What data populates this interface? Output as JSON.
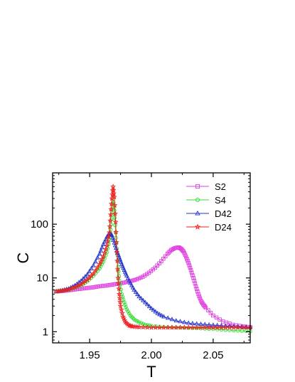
{
  "chart_data": {
    "type": "line",
    "xlabel": "T",
    "ylabel": "C",
    "xlim": [
      1.92,
      2.08
    ],
    "ylim": [
      0.62,
      900
    ],
    "yscale": "log",
    "xticks": [
      1.95,
      2.0,
      2.05
    ],
    "xtick_labels": [
      "1.95",
      "2.00",
      "2.05"
    ],
    "yticks": [
      1,
      10,
      100
    ],
    "ytick_labels": [
      "1",
      "10",
      "100"
    ],
    "grid": false,
    "legend_position": "top-right",
    "series": [
      {
        "name": "S2",
        "color": "#e040e0",
        "marker": "square",
        "x": [
          1.923,
          1.928,
          1.933,
          1.938,
          1.943,
          1.948,
          1.953,
          1.958,
          1.963,
          1.968,
          1.973,
          1.978,
          1.983,
          1.988,
          1.993,
          1.998,
          2.003,
          2.008,
          2.013,
          2.016,
          2.019,
          2.022,
          2.024,
          2.026,
          2.028,
          2.03,
          2.032,
          2.034,
          2.036,
          2.038,
          2.04,
          2.042,
          2.044,
          2.05,
          2.058,
          2.066,
          2.074,
          2.08
        ],
        "y": [
          5.6,
          5.7,
          5.9,
          6.1,
          6.3,
          6.5,
          6.7,
          7.0,
          7.2,
          7.5,
          7.8,
          8.2,
          8.7,
          9.4,
          10.5,
          12.5,
          15.5,
          20.5,
          28,
          33,
          36,
          37,
          35,
          31,
          25,
          19,
          14,
          10,
          7.0,
          5.0,
          3.8,
          3.2,
          2.8,
          2.0,
          1.55,
          1.35,
          1.25,
          1.22
        ]
      },
      {
        "name": "S4",
        "color": "#33dd33",
        "marker": "circle",
        "x": [
          1.923,
          1.928,
          1.933,
          1.938,
          1.943,
          1.948,
          1.953,
          1.958,
          1.961,
          1.964,
          1.966,
          1.967,
          1.968,
          1.969,
          1.97,
          1.971,
          1.972,
          1.973,
          1.974,
          1.976,
          1.978,
          1.98,
          1.983,
          1.986,
          1.99,
          1.995,
          2.0,
          2.01,
          2.02,
          2.03,
          2.04,
          2.05,
          2.06,
          2.07,
          2.08
        ],
        "y": [
          5.6,
          5.8,
          6.1,
          6.6,
          7.3,
          8.6,
          11,
          15,
          20,
          30,
          50,
          80,
          150,
          300,
          180,
          70,
          35,
          16,
          9,
          5,
          3.5,
          2.6,
          2.0,
          1.7,
          1.5,
          1.35,
          1.28,
          1.22,
          1.2,
          1.18,
          1.15,
          1.12,
          1.08,
          1.05,
          1.02
        ]
      },
      {
        "name": "D42",
        "color": "#2233cc",
        "marker": "triangle",
        "x": [
          1.923,
          1.928,
          1.933,
          1.938,
          1.943,
          1.948,
          1.953,
          1.958,
          1.961,
          1.964,
          1.966,
          1.968,
          1.97,
          1.972,
          1.974,
          1.976,
          1.978,
          1.98,
          1.983,
          1.986,
          1.99,
          1.995,
          2.0,
          2.005,
          2.01,
          2.02,
          2.03,
          2.04,
          2.05,
          2.06,
          2.07,
          2.08
        ],
        "y": [
          5.6,
          5.9,
          6.3,
          7.2,
          8.8,
          11.5,
          17,
          28,
          42,
          58,
          67,
          62,
          45,
          32,
          24,
          18,
          14,
          11,
          8,
          6,
          4.5,
          3.5,
          2.7,
          2.2,
          1.9,
          1.6,
          1.45,
          1.38,
          1.33,
          1.28,
          1.25,
          1.22
        ]
      },
      {
        "name": "D24",
        "color": "#ee2222",
        "marker": "star",
        "x": [
          1.923,
          1.928,
          1.933,
          1.938,
          1.943,
          1.948,
          1.953,
          1.958,
          1.961,
          1.964,
          1.966,
          1.967,
          1.968,
          1.969,
          1.97,
          1.971,
          1.972,
          1.973,
          1.974,
          1.975,
          1.977,
          1.979,
          1.982,
          1.985,
          1.99,
          2.0,
          2.01,
          2.02,
          2.03,
          2.04,
          2.05,
          2.06,
          2.07,
          2.08
        ],
        "y": [
          5.6,
          5.8,
          6.1,
          6.7,
          7.6,
          9.2,
          12,
          18,
          25,
          40,
          70,
          150,
          300,
          500,
          320,
          110,
          30,
          10,
          5,
          3,
          1.9,
          1.5,
          1.3,
          1.25,
          1.22,
          1.2,
          1.2,
          1.2,
          1.2,
          1.2,
          1.2,
          1.2,
          1.2,
          1.2
        ]
      }
    ]
  }
}
